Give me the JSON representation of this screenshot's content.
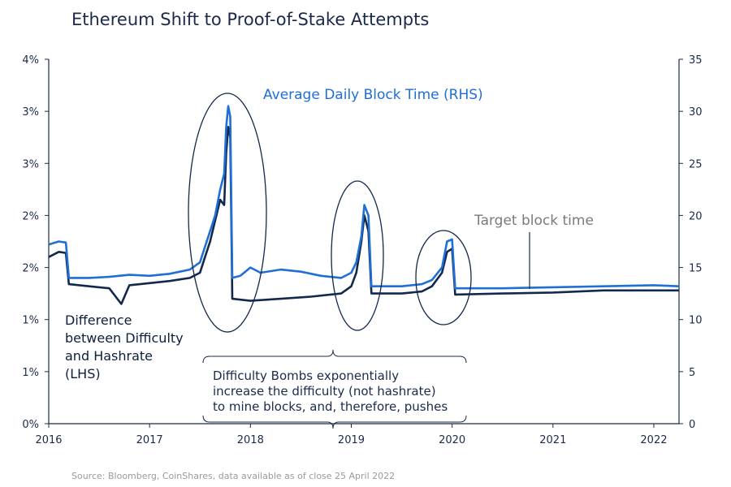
{
  "title": "Ethereum Shift to Proof-of-Stake Attempts",
  "source": "Source: Bloomberg, CoinShares, data available as of close 25 April 2022",
  "colors": {
    "rhs_series": "#1f6fd6",
    "lhs_series": "#13294b",
    "axis": "#1b2a4a",
    "target_line": "#1b2a4a"
  },
  "chart_data": {
    "type": "line",
    "x_label_ticks": [
      "2016",
      "2017",
      "2018",
      "2019",
      "2020",
      "2021",
      "2022"
    ],
    "left_axis": {
      "tick_labels": [
        "0%",
        "1%",
        "1%",
        "2%",
        "2%",
        "3%",
        "3%",
        "4%"
      ],
      "ylim": [
        0,
        3.5
      ]
    },
    "right_axis": {
      "tick_labels": [
        "0",
        "5",
        "10",
        "15",
        "20",
        "25",
        "30",
        "35"
      ],
      "ylim": [
        0,
        35
      ]
    },
    "series": [
      {
        "name": "Average Daily Block Time (RHS)",
        "axis": "right",
        "points": [
          [
            2016.0,
            17.2
          ],
          [
            2016.1,
            17.5
          ],
          [
            2016.17,
            17.4
          ],
          [
            2016.2,
            14.0
          ],
          [
            2016.4,
            14.0
          ],
          [
            2016.6,
            14.1
          ],
          [
            2016.8,
            14.3
          ],
          [
            2017.0,
            14.2
          ],
          [
            2017.2,
            14.4
          ],
          [
            2017.4,
            14.8
          ],
          [
            2017.5,
            15.5
          ],
          [
            2017.55,
            17.0
          ],
          [
            2017.6,
            18.5
          ],
          [
            2017.65,
            20.0
          ],
          [
            2017.7,
            22.5
          ],
          [
            2017.74,
            24.0
          ],
          [
            2017.76,
            28.5
          ],
          [
            2017.78,
            30.5
          ],
          [
            2017.8,
            29.5
          ],
          [
            2017.82,
            14.0
          ],
          [
            2017.9,
            14.2
          ],
          [
            2018.0,
            15.0
          ],
          [
            2018.1,
            14.5
          ],
          [
            2018.3,
            14.8
          ],
          [
            2018.5,
            14.6
          ],
          [
            2018.7,
            14.2
          ],
          [
            2018.9,
            14.0
          ],
          [
            2019.0,
            14.5
          ],
          [
            2019.05,
            15.5
          ],
          [
            2019.1,
            18.0
          ],
          [
            2019.13,
            21.0
          ],
          [
            2019.17,
            20.0
          ],
          [
            2019.2,
            13.2
          ],
          [
            2019.5,
            13.2
          ],
          [
            2019.7,
            13.4
          ],
          [
            2019.8,
            13.8
          ],
          [
            2019.9,
            15.0
          ],
          [
            2019.95,
            17.5
          ],
          [
            2020.0,
            17.7
          ],
          [
            2020.03,
            13.0
          ],
          [
            2020.5,
            13.0
          ],
          [
            2021.0,
            13.1
          ],
          [
            2021.5,
            13.2
          ],
          [
            2022.0,
            13.3
          ],
          [
            2022.25,
            13.2
          ]
        ]
      },
      {
        "name": "Difference between Difficulty and Hashrate (LHS)",
        "axis": "left",
        "points": [
          [
            2016.0,
            1.6
          ],
          [
            2016.1,
            1.65
          ],
          [
            2016.17,
            1.64
          ],
          [
            2016.2,
            1.34
          ],
          [
            2016.4,
            1.32
          ],
          [
            2016.6,
            1.3
          ],
          [
            2016.72,
            1.15
          ],
          [
            2016.8,
            1.33
          ],
          [
            2017.0,
            1.35
          ],
          [
            2017.2,
            1.37
          ],
          [
            2017.4,
            1.4
          ],
          [
            2017.5,
            1.45
          ],
          [
            2017.55,
            1.6
          ],
          [
            2017.6,
            1.75
          ],
          [
            2017.65,
            1.95
          ],
          [
            2017.7,
            2.15
          ],
          [
            2017.74,
            2.1
          ],
          [
            2017.76,
            2.6
          ],
          [
            2017.78,
            2.85
          ],
          [
            2017.8,
            2.75
          ],
          [
            2017.82,
            1.2
          ],
          [
            2018.0,
            1.18
          ],
          [
            2018.3,
            1.2
          ],
          [
            2018.6,
            1.22
          ],
          [
            2018.9,
            1.25
          ],
          [
            2019.0,
            1.32
          ],
          [
            2019.05,
            1.45
          ],
          [
            2019.1,
            1.75
          ],
          [
            2019.13,
            2.0
          ],
          [
            2019.17,
            1.85
          ],
          [
            2019.2,
            1.25
          ],
          [
            2019.5,
            1.25
          ],
          [
            2019.7,
            1.27
          ],
          [
            2019.8,
            1.32
          ],
          [
            2019.9,
            1.45
          ],
          [
            2019.95,
            1.65
          ],
          [
            2020.0,
            1.68
          ],
          [
            2020.03,
            1.24
          ],
          [
            2020.5,
            1.25
          ],
          [
            2021.0,
            1.26
          ],
          [
            2021.5,
            1.28
          ],
          [
            2022.0,
            1.28
          ],
          [
            2022.25,
            1.28
          ]
        ]
      }
    ]
  },
  "annotations": {
    "rhs_label": "Average Daily Block Time (RHS)",
    "target_label": "Target block time",
    "lhs_label_lines": [
      "Difference",
      "between Difficulty",
      "and Hashrate",
      "(LHS)"
    ],
    "bomb_note_lines": [
      "Difficulty Bombs exponentially",
      "increase the difficulty (not hashrate)",
      "to mine blocks, and, therefore, pushes"
    ]
  }
}
